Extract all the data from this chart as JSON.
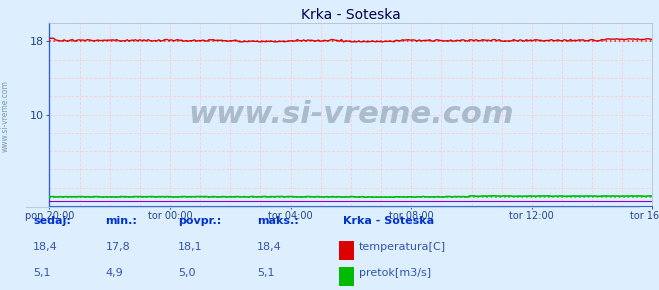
{
  "title": "Krka - Soteska",
  "bg_color": "#ddeeff",
  "plot_bg_color": "#ddeeff",
  "grid_color": "#ffbbbb",
  "xlabel_ticks": [
    "pon 20:00",
    "tor 00:00",
    "tor 04:00",
    "tor 08:00",
    "tor 12:00",
    "tor 16:00"
  ],
  "ytick_labels": [
    "10",
    "18"
  ],
  "ytick_vals": [
    10,
    18
  ],
  "ylim": [
    0,
    20
  ],
  "n_points": 288,
  "temp_color": "#dd0000",
  "pretok_color": "#00bb00",
  "purple_color": "#8800cc",
  "temp_avg": 18.1,
  "pretok_avg_scaled": 1.0,
  "watermark": "www.si-vreme.com",
  "watermark_color": "#aabbcc",
  "watermark_size": 22,
  "left_label": "www.si-vreme.com",
  "legend_title": "Krka - Soteska",
  "legend_items": [
    "temperatura[C]",
    "pretok[m3/s]"
  ],
  "stat_labels": [
    "sedaj:",
    "min.:",
    "povpr.:",
    "maks.:"
  ],
  "stat_temp": [
    "18,4",
    "17,8",
    "18,1",
    "18,4"
  ],
  "stat_pretok": [
    "5,1",
    "4,9",
    "5,0",
    "5,1"
  ],
  "text_color": "#3355aa",
  "header_color": "#0033cc",
  "title_color": "#000044"
}
